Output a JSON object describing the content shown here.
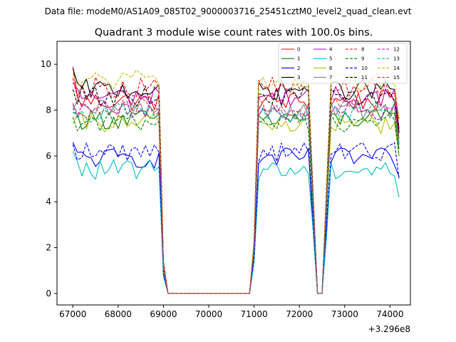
{
  "figure": {
    "suptitle": "Data file: modeM0/AS1A09_085T02_9000003716_25451cztM0_level2_quad_clean.evt",
    "title": "Quadrant 3 module wise count rates with 100.0s bins.",
    "offset_label": "+3.296e8"
  },
  "chart_data": {
    "type": "line",
    "title": "Quadrant 3 module wise count rates with 100.0s bins.",
    "xlabel": "",
    "ylabel": "",
    "x_offset": 329600000,
    "xlim": [
      66650,
      74450
    ],
    "ylim": [
      -0.5,
      11.0
    ],
    "xticks": [
      67000,
      68000,
      69000,
      70000,
      71000,
      72000,
      73000,
      74000
    ],
    "xtick_labels": [
      "67000",
      "68000",
      "69000",
      "70000",
      "71000",
      "72000",
      "73000",
      "74000"
    ],
    "yticks": [
      0,
      2,
      4,
      6,
      8,
      10
    ],
    "ytick_labels": [
      "0",
      "2",
      "4",
      "6",
      "8",
      "10"
    ],
    "grid": false,
    "legend": {
      "location": "top-right",
      "columns": 4
    },
    "segments": [
      {
        "start": 67000,
        "end": 68900,
        "npts": 20,
        "level": 1.0
      },
      {
        "start": 69000,
        "end": 69000,
        "npts": 1,
        "level": 0.15
      },
      {
        "start": 69100,
        "end": 70900,
        "npts": 19,
        "level": 0
      },
      {
        "start": 71000,
        "end": 71000,
        "npts": 1,
        "level": 0.25
      },
      {
        "start": 71100,
        "end": 72200,
        "npts": 12,
        "level": 1.0
      },
      {
        "start": 72300,
        "end": 72300,
        "npts": 1,
        "level": 0.5
      },
      {
        "start": 72400,
        "end": 72500,
        "npts": 2,
        "level": 0
      },
      {
        "start": 72600,
        "end": 72600,
        "npts": 1,
        "level": 0.5
      },
      {
        "start": 72700,
        "end": 74200,
        "npts": 16,
        "level": 1.0
      }
    ],
    "series": [
      {
        "name": "0",
        "color": "#ff0000",
        "dash": "solid",
        "base": 8.4,
        "start": 9.9,
        "end": 7.0
      },
      {
        "name": "1",
        "color": "#008000",
        "dash": "solid",
        "base": 7.6,
        "start": 7.9,
        "end": 6.3
      },
      {
        "name": "2",
        "color": "#0000ff",
        "dash": "solid",
        "base": 5.9,
        "start": 6.6,
        "end": 5.1
      },
      {
        "name": "3",
        "color": "#000000",
        "dash": "solid",
        "base": 8.9,
        "start": 9.8,
        "end": 7.0
      },
      {
        "name": "4",
        "color": "#bf00bf",
        "dash": "solid",
        "base": 8.6,
        "start": 9.2,
        "end": 7.2
      },
      {
        "name": "5",
        "color": "#00bfbf",
        "dash": "solid",
        "base": 5.4,
        "start": 6.2,
        "end": 4.2
      },
      {
        "name": "6",
        "color": "#bfbf00",
        "dash": "solid",
        "base": 7.4,
        "start": 7.4,
        "end": 6.0
      },
      {
        "name": "7",
        "color": "#808080",
        "dash": "solid",
        "base": 8.0,
        "start": 8.0,
        "end": 6.5
      },
      {
        "name": "8",
        "color": "#ff0000",
        "dash": "dashed",
        "base": 9.0,
        "start": 9.4,
        "end": 7.6
      },
      {
        "name": "9",
        "color": "#008000",
        "dash": "dashed",
        "base": 7.5,
        "start": 7.7,
        "end": 6.0
      },
      {
        "name": "10",
        "color": "#0000ff",
        "dash": "dashed",
        "base": 6.2,
        "start": 6.5,
        "end": 5.0
      },
      {
        "name": "11",
        "color": "#000000",
        "dash": "dashed",
        "base": 8.6,
        "start": 8.9,
        "end": 7.2
      },
      {
        "name": "12",
        "color": "#bf00bf",
        "dash": "dashed",
        "base": 8.0,
        "start": 8.3,
        "end": 6.8
      },
      {
        "name": "13",
        "color": "#00bfbf",
        "dash": "dashed",
        "base": 7.9,
        "start": 8.1,
        "end": 6.6
      },
      {
        "name": "14",
        "color": "#bfbf00",
        "dash": "dashed",
        "base": 9.3,
        "start": 9.6,
        "end": 7.6
      },
      {
        "name": "15",
        "color": "#bf4040",
        "dash": "dashed",
        "base": 8.1,
        "start": 8.2,
        "end": 6.7
      }
    ]
  }
}
